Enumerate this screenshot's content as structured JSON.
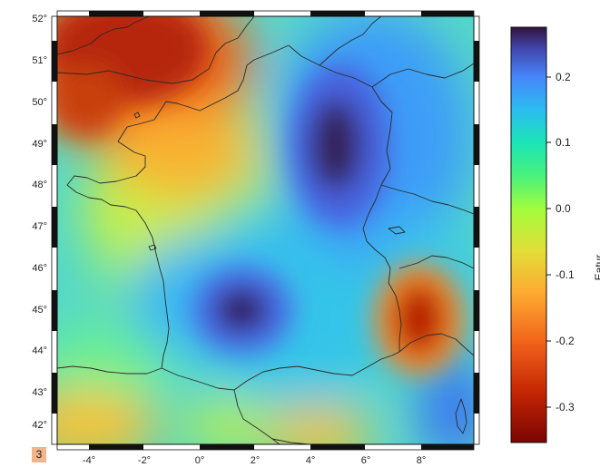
{
  "map": {
    "lat_ticks": [
      "52°",
      "51°",
      "50°",
      "49°",
      "48°",
      "47°",
      "46°",
      "45°",
      "44°",
      "43°",
      "42°"
    ],
    "lon_ticks": [
      "-4°",
      "-2°",
      "0°",
      "2°",
      "4°",
      "6°",
      "8°"
    ],
    "lat_range": [
      41.5,
      52.2
    ],
    "lon_range": [
      -5.5,
      10.2
    ],
    "field_anomalies": [
      {
        "feature": "high",
        "lon": 4.8,
        "lat": 49.2,
        "value": 0.25
      },
      {
        "feature": "high",
        "lon": 1.5,
        "lat": 44.9,
        "value": 0.24
      },
      {
        "feature": "low",
        "lon": -2.0,
        "lat": 51.0,
        "value": -0.33
      },
      {
        "feature": "low",
        "lon": 8.0,
        "lat": 44.6,
        "value": -0.32
      },
      {
        "feature": "low",
        "lon": -3.5,
        "lat": 50.0,
        "value": -0.25
      },
      {
        "feature": "low",
        "lon": -4.0,
        "lat": 41.8,
        "value": -0.15
      },
      {
        "feature": "low",
        "lon": 4.0,
        "lat": 41.5,
        "value": -0.14
      }
    ]
  },
  "colorbar": {
    "ticks": [
      "0.2",
      "0.1",
      "0.0",
      "-0.1",
      "-0.2",
      "-0.3"
    ],
    "range": [
      -0.35,
      0.28
    ],
    "colormap": "turbo",
    "label": "Eatur"
  },
  "page_badge": "3"
}
